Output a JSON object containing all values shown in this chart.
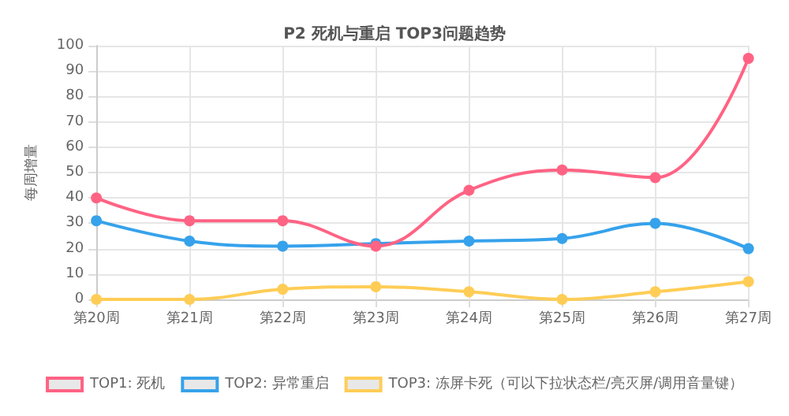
{
  "chart_data": {
    "type": "line",
    "title": "P2 死机与重启 TOP3问题趋势",
    "ylabel": "每周增量",
    "categories": [
      "第20周",
      "第21周",
      "第22周",
      "第23周",
      "第24周",
      "第25周",
      "第26周",
      "第27周"
    ],
    "series": [
      {
        "name": "TOP1: 死机",
        "color": "#ff6384",
        "values": [
          40,
          31,
          31,
          21,
          43,
          51,
          48,
          95
        ]
      },
      {
        "name": "TOP2: 异常重启",
        "color": "#36a2eb",
        "values": [
          31,
          23,
          21,
          22,
          23,
          24,
          30,
          20
        ]
      },
      {
        "name": "TOP3: 冻屏卡死（可以下拉状态栏/亮灭屏/调用音量键）",
        "color": "#ffcd56",
        "values": [
          0,
          0,
          4,
          5,
          3,
          0,
          3,
          7
        ]
      }
    ],
    "ylim": [
      0,
      100
    ],
    "yticks": [
      0,
      10,
      20,
      30,
      40,
      50,
      60,
      70,
      80,
      90,
      100
    ],
    "grid": true,
    "legend": "bottom",
    "marker": "circle",
    "line_style": "solid"
  }
}
